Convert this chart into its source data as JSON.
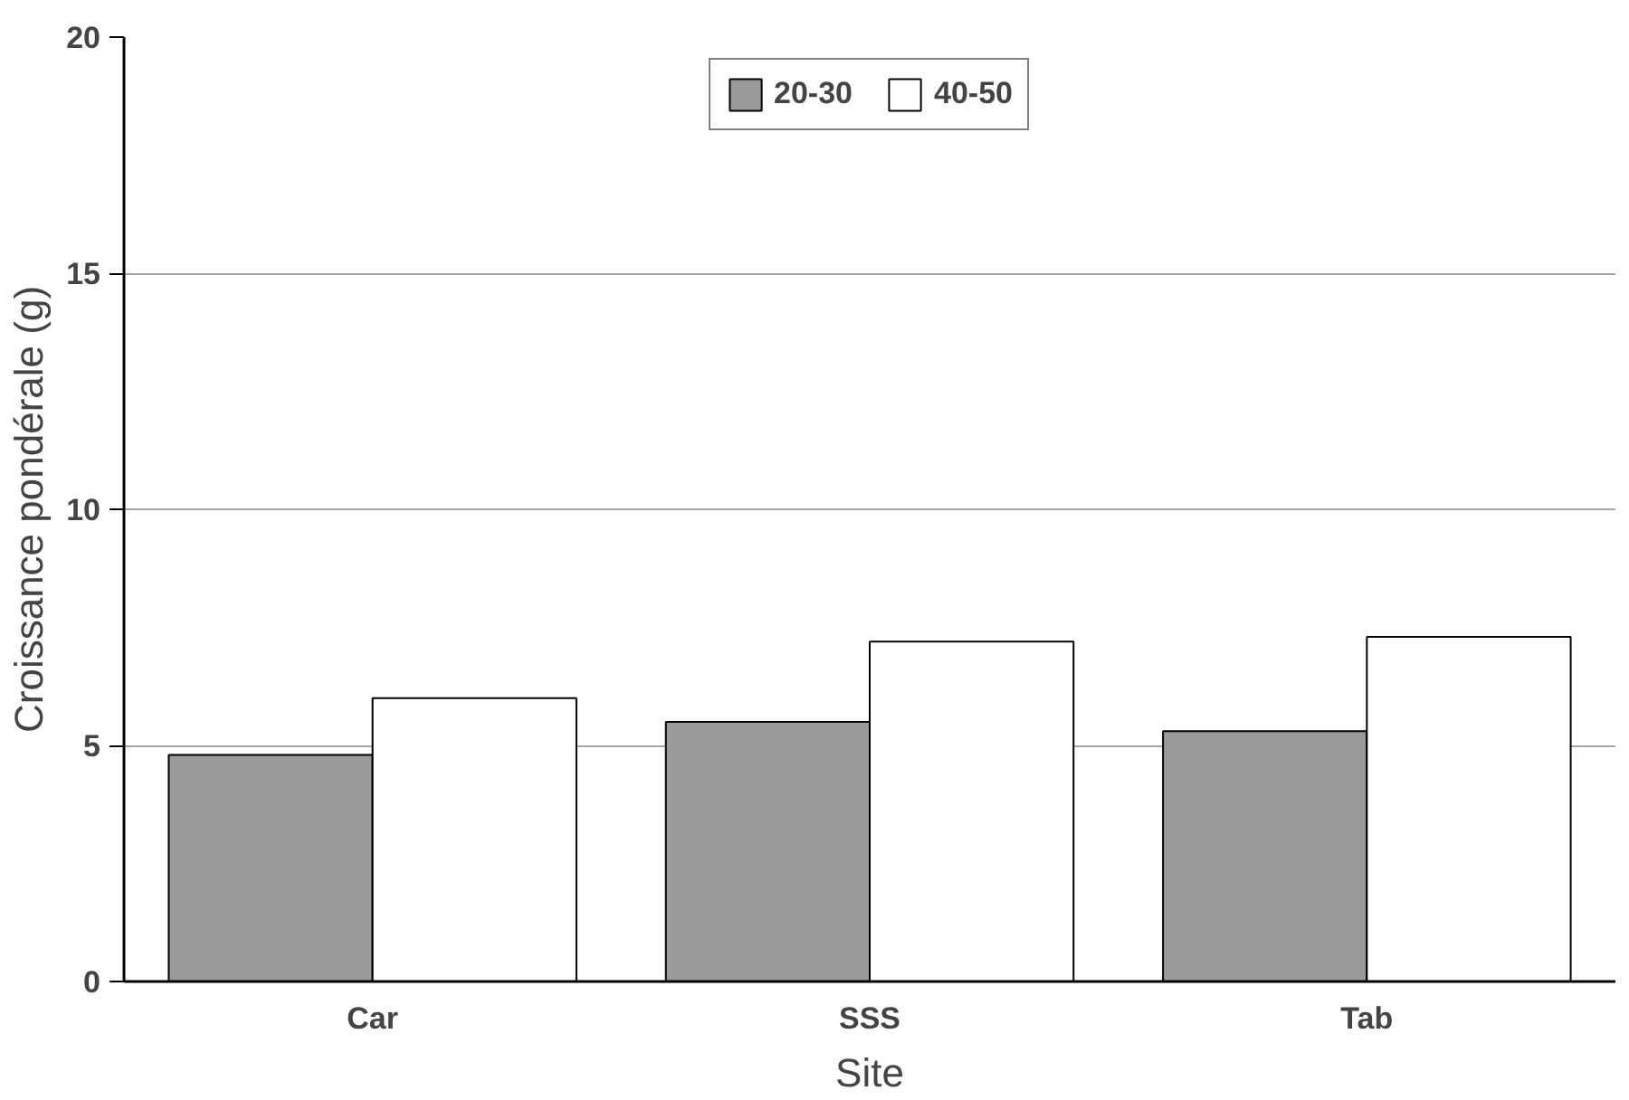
{
  "chart_data": {
    "type": "bar",
    "xlabel": "Site",
    "ylabel": "Croissance pondérale (g)",
    "categories": [
      "Car",
      "SSS",
      "Tab"
    ],
    "series": [
      {
        "name": "20-30",
        "color": "#9a9a9a",
        "values": [
          4.8,
          5.5,
          5.3
        ]
      },
      {
        "name": "40-50",
        "color": "#ffffff",
        "values": [
          6.0,
          7.2,
          7.3
        ]
      }
    ],
    "ylim": [
      0,
      20
    ],
    "yticks": [
      0,
      5,
      10,
      15,
      20
    ],
    "grid": "y",
    "legend": "top"
  }
}
